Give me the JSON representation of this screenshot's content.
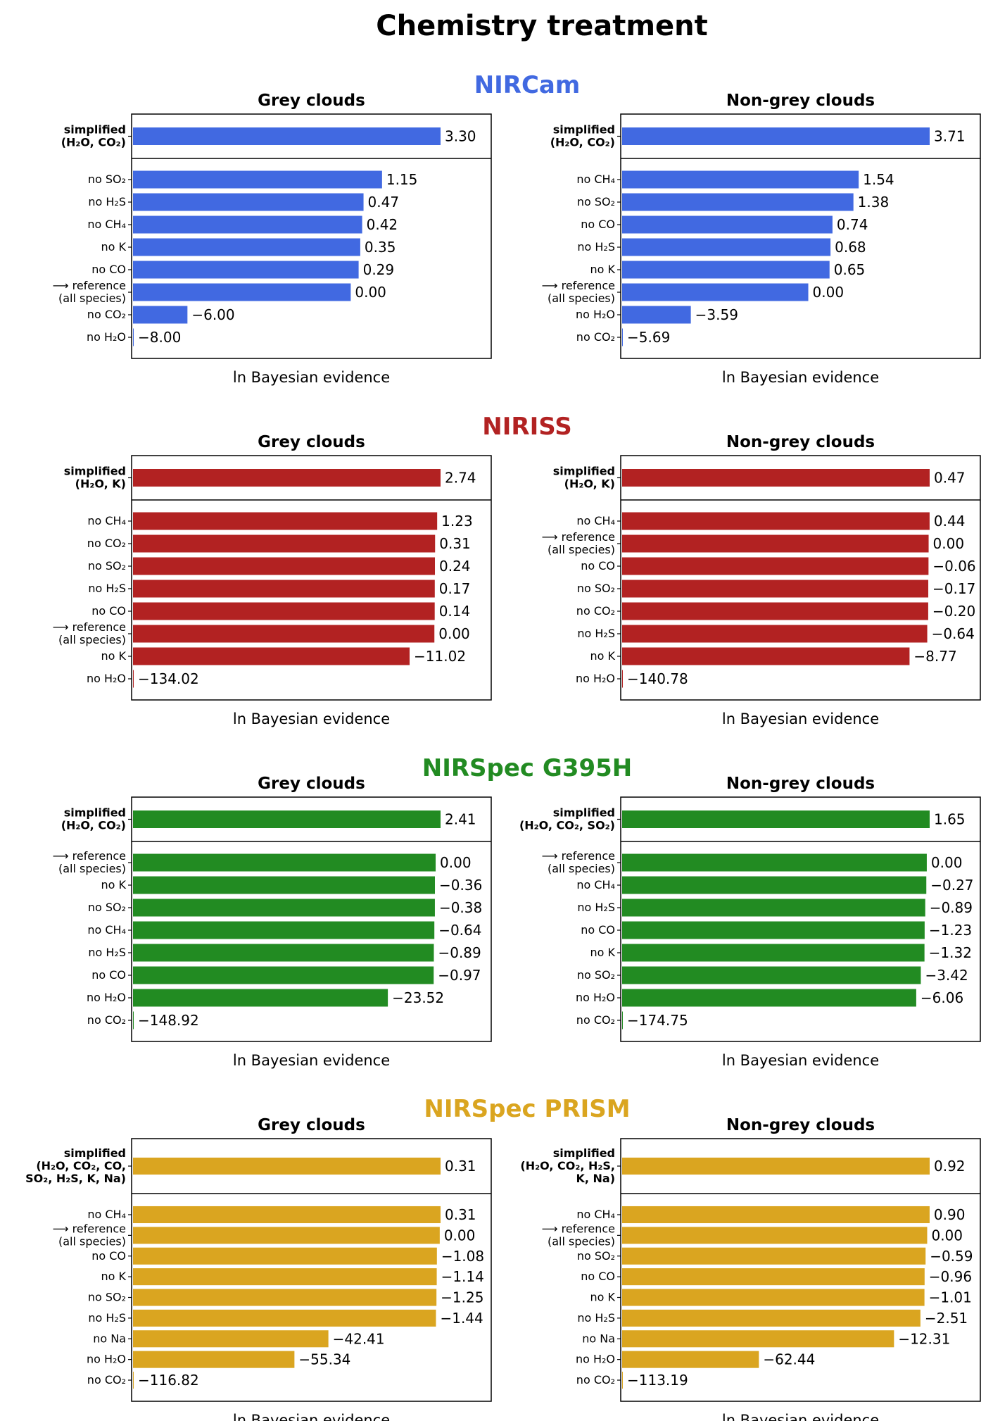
{
  "figure": {
    "title": "Chemistry treatment",
    "subplot_titles": {
      "grey": "Grey clouds",
      "nongrey": "Non-grey clouds"
    },
    "xlabel": "ln Bayesian evidence"
  },
  "chart_data": [
    {
      "type": "bar",
      "orientation": "horizontal",
      "instrument": "NIRCam",
      "color": "#4169e1",
      "panels": [
        {
          "title": "Grey clouds",
          "xlabel": "ln Bayesian evidence",
          "categories": [
            [
              "simplified",
              "(H₂O, CO₂)"
            ],
            [
              "no SO₂"
            ],
            [
              "no H₂S"
            ],
            [
              "no CH₄"
            ],
            [
              "no K"
            ],
            [
              "no CO"
            ],
            [
              "⟶ reference",
              "(all species)"
            ],
            [
              "no CO₂"
            ],
            [
              "no H₂O"
            ]
          ],
          "values": [
            3.3,
            1.15,
            0.47,
            0.42,
            0.35,
            0.29,
            0.0,
            -6.0,
            -8.0
          ],
          "labels": [
            "3.30",
            "1.15",
            "0.47",
            "0.42",
            "0.35",
            "0.29",
            "0.00",
            "−6.00",
            "−8.00"
          ]
        },
        {
          "title": "Non-grey clouds",
          "xlabel": "ln Bayesian evidence",
          "categories": [
            [
              "simplified",
              "(H₂O, CO₂)"
            ],
            [
              "no CH₄"
            ],
            [
              "no SO₂"
            ],
            [
              "no CO"
            ],
            [
              "no H₂S"
            ],
            [
              "no K"
            ],
            [
              "⟶ reference",
              "(all species)"
            ],
            [
              "no H₂O"
            ],
            [
              "no CO₂"
            ]
          ],
          "values": [
            3.71,
            1.54,
            1.38,
            0.74,
            0.68,
            0.65,
            0.0,
            -3.59,
            -5.69
          ],
          "labels": [
            "3.71",
            "1.54",
            "1.38",
            "0.74",
            "0.68",
            "0.65",
            "0.00",
            "−3.59",
            "−5.69"
          ]
        }
      ]
    },
    {
      "type": "bar",
      "orientation": "horizontal",
      "instrument": "NIRISS",
      "color": "#b22222",
      "panels": [
        {
          "title": "Grey clouds",
          "xlabel": "ln Bayesian evidence",
          "categories": [
            [
              "simplified",
              "(H₂O, K)"
            ],
            [
              "no CH₄"
            ],
            [
              "no CO₂"
            ],
            [
              "no SO₂"
            ],
            [
              "no H₂S"
            ],
            [
              "no CO"
            ],
            [
              "⟶ reference",
              "(all species)"
            ],
            [
              "no K"
            ],
            [
              "no H₂O"
            ]
          ],
          "values": [
            2.74,
            1.23,
            0.31,
            0.24,
            0.17,
            0.14,
            0.0,
            -11.02,
            -134.02
          ],
          "labels": [
            "2.74",
            "1.23",
            "0.31",
            "0.24",
            "0.17",
            "0.14",
            "0.00",
            "−11.02",
            "−134.02"
          ]
        },
        {
          "title": "Non-grey clouds",
          "xlabel": "ln Bayesian evidence",
          "categories": [
            [
              "simplified",
              "(H₂O, K)"
            ],
            [
              "no CH₄"
            ],
            [
              "⟶ reference",
              "(all species)"
            ],
            [
              "no CO"
            ],
            [
              "no SO₂"
            ],
            [
              "no CO₂"
            ],
            [
              "no H₂S"
            ],
            [
              "no K"
            ],
            [
              "no H₂O"
            ]
          ],
          "values": [
            0.47,
            0.44,
            0.0,
            -0.06,
            -0.17,
            -0.2,
            -0.64,
            -8.77,
            -140.78
          ],
          "labels": [
            "0.47",
            "0.44",
            "0.00",
            "−0.06",
            "−0.17",
            "−0.20",
            "−0.64",
            "−8.77",
            "−140.78"
          ]
        }
      ]
    },
    {
      "type": "bar",
      "orientation": "horizontal",
      "instrument": "NIRSpec G395H",
      "color": "#228b22",
      "panels": [
        {
          "title": "Grey clouds",
          "xlabel": "ln Bayesian evidence",
          "categories": [
            [
              "simplified",
              "(H₂O, CO₂)"
            ],
            [
              "⟶ reference",
              "(all species)"
            ],
            [
              "no K"
            ],
            [
              "no SO₂"
            ],
            [
              "no CH₄"
            ],
            [
              "no H₂S"
            ],
            [
              "no CO"
            ],
            [
              "no H₂O"
            ],
            [
              "no CO₂"
            ]
          ],
          "values": [
            2.41,
            0.0,
            -0.36,
            -0.38,
            -0.64,
            -0.89,
            -0.97,
            -23.52,
            -148.92
          ],
          "labels": [
            "2.41",
            "0.00",
            "−0.36",
            "−0.38",
            "−0.64",
            "−0.89",
            "−0.97",
            "−23.52",
            "−148.92"
          ]
        },
        {
          "title": "Non-grey clouds",
          "xlabel": "ln Bayesian evidence",
          "categories": [
            [
              "simplified",
              "(H₂O, CO₂, SO₂)"
            ],
            [
              "⟶ reference",
              "(all species)"
            ],
            [
              "no CH₄"
            ],
            [
              "no H₂S"
            ],
            [
              "no CO"
            ],
            [
              "no K"
            ],
            [
              "no SO₂"
            ],
            [
              "no H₂O"
            ],
            [
              "no CO₂"
            ]
          ],
          "values": [
            1.65,
            0.0,
            -0.27,
            -0.89,
            -1.23,
            -1.32,
            -3.42,
            -6.06,
            -174.75
          ],
          "labels": [
            "1.65",
            "0.00",
            "−0.27",
            "−0.89",
            "−1.23",
            "−1.32",
            "−3.42",
            "−6.06",
            "−174.75"
          ]
        }
      ]
    },
    {
      "type": "bar",
      "orientation": "horizontal",
      "instrument": "NIRSpec PRISM",
      "color": "#daa520",
      "panels": [
        {
          "title": "Grey clouds",
          "xlabel": "ln Bayesian evidence",
          "categories": [
            [
              "simplified",
              "(H₂O, CO₂, CO,",
              "SO₂, H₂S, K, Na)"
            ],
            [
              "no CH₄"
            ],
            [
              "⟶ reference",
              "(all species)"
            ],
            [
              "no CO"
            ],
            [
              "no K"
            ],
            [
              "no SO₂"
            ],
            [
              "no H₂S"
            ],
            [
              "no Na"
            ],
            [
              "no H₂O"
            ],
            [
              "no CO₂"
            ]
          ],
          "values": [
            0.31,
            0.31,
            0.0,
            -1.08,
            -1.14,
            -1.25,
            -1.44,
            -42.41,
            -55.34,
            -116.82
          ],
          "labels": [
            "0.31",
            "0.31",
            "0.00",
            "−1.08",
            "−1.14",
            "−1.25",
            "−1.44",
            "−42.41",
            "−55.34",
            "−116.82"
          ]
        },
        {
          "title": "Non-grey clouds",
          "xlabel": "ln Bayesian evidence",
          "categories": [
            [
              "simplified",
              "(H₂O, CO₂, H₂S,",
              "K, Na)"
            ],
            [
              "no CH₄"
            ],
            [
              "⟶ reference",
              "(all species)"
            ],
            [
              "no SO₂"
            ],
            [
              "no CO"
            ],
            [
              "no K"
            ],
            [
              "no H₂S"
            ],
            [
              "no Na"
            ],
            [
              "no H₂O"
            ],
            [
              "no CO₂"
            ]
          ],
          "values": [
            0.92,
            0.9,
            0.0,
            -0.59,
            -0.96,
            -1.01,
            -2.51,
            -12.31,
            -62.44,
            -113.19
          ],
          "labels": [
            "0.92",
            "0.90",
            "0.00",
            "−0.59",
            "−0.96",
            "−1.01",
            "−2.51",
            "−12.31",
            "−62.44",
            "−113.19"
          ]
        }
      ]
    }
  ]
}
